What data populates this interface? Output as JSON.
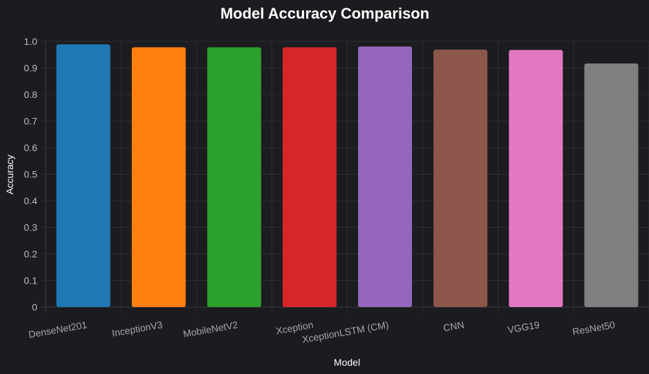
{
  "chart_data": {
    "type": "bar",
    "title": "Model Accuracy Comparison",
    "xlabel": "Model",
    "ylabel": "Accuracy",
    "ylim": [
      0,
      1.0
    ],
    "y_ticks": [
      "0",
      "0.1",
      "0.2",
      "0.3",
      "0.4",
      "0.5",
      "0.6",
      "0.7",
      "0.8",
      "0.9",
      "1.0"
    ],
    "grid": true,
    "categories": [
      "DenseNet201",
      "InceptionV3",
      "MobileNetV2",
      "Xception",
      "XceptionLSTM (CM)",
      "CNN",
      "VGG19",
      "ResNet50"
    ],
    "values": [
      0.989,
      0.978,
      0.978,
      0.978,
      0.981,
      0.969,
      0.968,
      0.917
    ],
    "colors": [
      "#1f77b4",
      "#ff7f0e",
      "#2ca02c",
      "#d62728",
      "#9467bd",
      "#8c564b",
      "#e377c2",
      "#7f7f7f"
    ]
  }
}
